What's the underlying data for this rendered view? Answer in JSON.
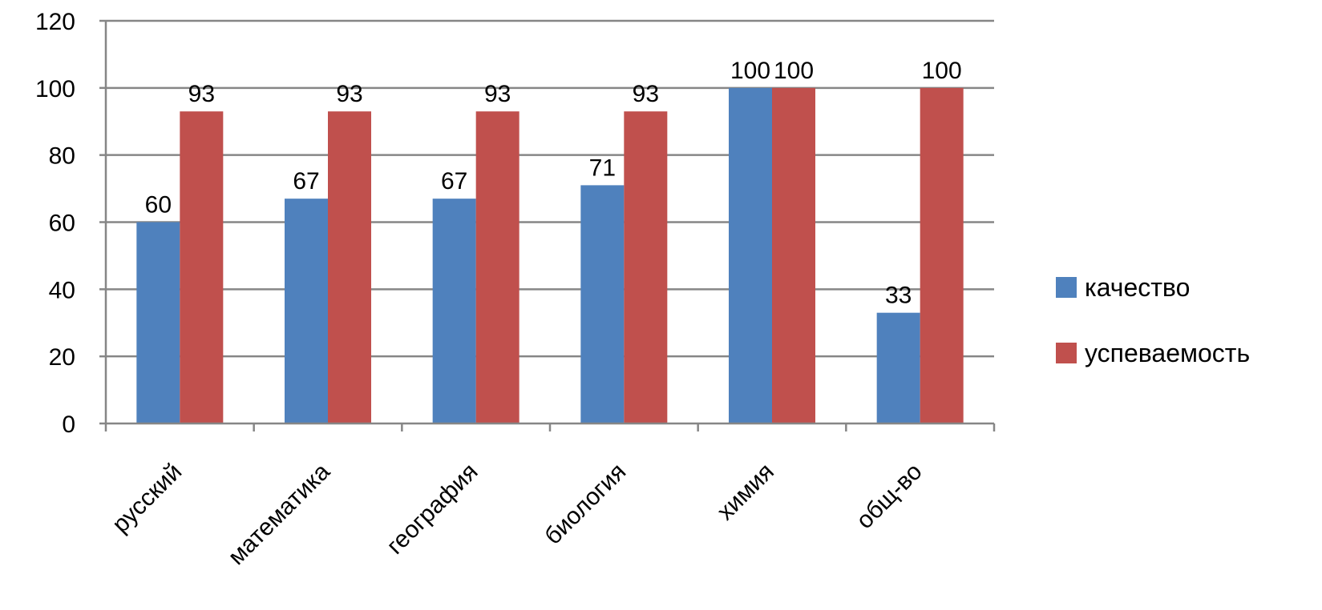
{
  "chart_data": {
    "type": "bar",
    "categories": [
      "русский",
      "математика",
      "география",
      "биология",
      "химия",
      "общ-во"
    ],
    "series": [
      {
        "name": "качество",
        "values": [
          60,
          67,
          67,
          71,
          100,
          33
        ],
        "color": "#4F81BD"
      },
      {
        "name": "успеваемость",
        "values": [
          93,
          93,
          93,
          93,
          100,
          100
        ],
        "color": "#C0504D"
      }
    ],
    "title": "",
    "xlabel": "",
    "ylabel": "",
    "ylim": [
      0,
      120
    ],
    "yticks": [
      0,
      20,
      40,
      60,
      80,
      100,
      120
    ],
    "ytick_labels": [
      "0",
      "20",
      "40",
      "60",
      "80",
      "100",
      "120"
    ],
    "grid": true,
    "legend_position": "right",
    "data_labels": true
  }
}
